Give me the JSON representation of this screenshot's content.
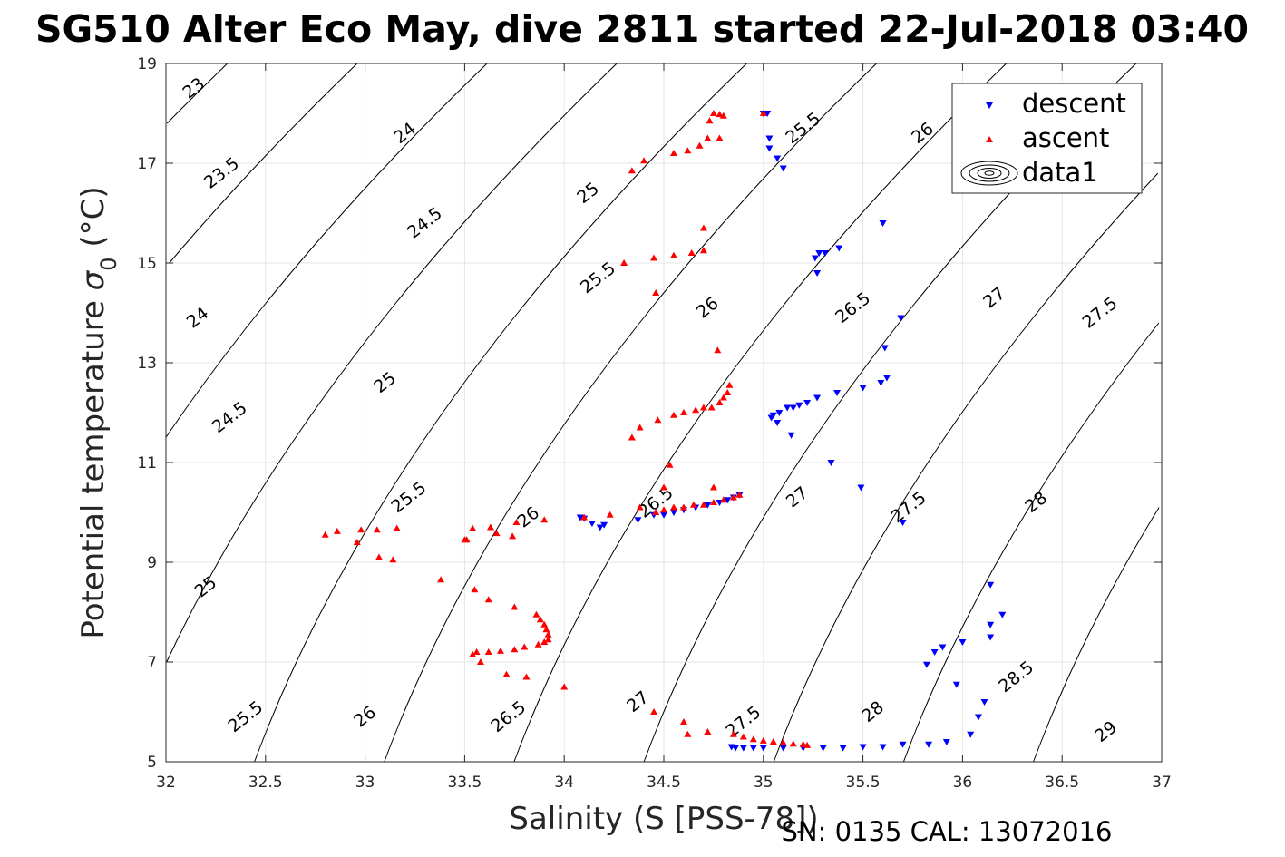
{
  "chart_data": {
    "type": "scatter",
    "title": "SG510 Alter Eco May, dive 2811 started 22-Jul-2018 03:40",
    "xlabel": "Salinity (S [PSS-78])",
    "ylabel": "Potential temperature σ_0 (°C)",
    "xlim": [
      32,
      37
    ],
    "ylim": [
      5,
      19
    ],
    "xticks": [
      "32",
      "32.5",
      "33",
      "33.5",
      "34",
      "34.5",
      "35",
      "35.5",
      "36",
      "36.5",
      "37"
    ],
    "yticks": [
      "5",
      "7",
      "9",
      "11",
      "13",
      "15",
      "17",
      "19"
    ],
    "grid": true,
    "legend_placement": "top-right",
    "legend": [
      "descent",
      "ascent",
      "data1"
    ],
    "colors": {
      "descent": "#0000ff",
      "ascent": "#ff0000",
      "contour": "#000000"
    },
    "footer": "SN: 0135  CAL: 13072016",
    "contour_levels": [
      23,
      23.5,
      24,
      24.5,
      25,
      25.5,
      26,
      26.5,
      27,
      27.5,
      28,
      28.5,
      29
    ],
    "contour_labels": [
      {
        "text": "23",
        "s": 32.14,
        "t": 18.5
      },
      {
        "text": "23.5",
        "s": 32.28,
        "t": 16.8
      },
      {
        "text": "24",
        "s": 32.16,
        "t": 13.9
      },
      {
        "text": "24",
        "s": 33.2,
        "t": 17.6
      },
      {
        "text": "24.5",
        "s": 32.32,
        "t": 11.9
      },
      {
        "text": "24.5",
        "s": 33.3,
        "t": 15.8
      },
      {
        "text": "25",
        "s": 32.2,
        "t": 8.5
      },
      {
        "text": "25",
        "s": 33.1,
        "t": 12.6
      },
      {
        "text": "25",
        "s": 34.12,
        "t": 16.4
      },
      {
        "text": "25.5",
        "s": 32.4,
        "t": 5.9
      },
      {
        "text": "25.5",
        "s": 33.22,
        "t": 10.3
      },
      {
        "text": "25.5",
        "s": 34.17,
        "t": 14.7
      },
      {
        "text": "25.5",
        "s": 35.2,
        "t": 17.7
      },
      {
        "text": "26",
        "s": 33.0,
        "t": 5.9
      },
      {
        "text": "26",
        "s": 33.82,
        "t": 9.9
      },
      {
        "text": "26",
        "s": 34.72,
        "t": 14.1
      },
      {
        "text": "26",
        "s": 35.8,
        "t": 17.6
      },
      {
        "text": "26.5",
        "s": 33.72,
        "t": 5.9
      },
      {
        "text": "26.5",
        "s": 34.46,
        "t": 10.2
      },
      {
        "text": "26.5",
        "s": 35.45,
        "t": 14.1
      },
      {
        "text": "27",
        "s": 34.37,
        "t": 6.2
      },
      {
        "text": "27",
        "s": 35.17,
        "t": 10.3
      },
      {
        "text": "27",
        "s": 36.16,
        "t": 14.3
      },
      {
        "text": "27.5",
        "s": 34.9,
        "t": 5.8
      },
      {
        "text": "27.5",
        "s": 35.73,
        "t": 10.1
      },
      {
        "text": "27.5",
        "s": 36.69,
        "t": 14.0
      },
      {
        "text": "28",
        "s": 35.55,
        "t": 6.0
      },
      {
        "text": "28",
        "s": 36.37,
        "t": 10.2
      },
      {
        "text": "28.5",
        "s": 36.27,
        "t": 6.7
      },
      {
        "text": "29",
        "s": 36.72,
        "t": 5.6
      }
    ],
    "series": [
      {
        "name": "descent",
        "marker": "triangle-down",
        "color": "#0000ff",
        "points": [
          [
            35.0,
            18.0
          ],
          [
            35.02,
            18.0
          ],
          [
            35.03,
            17.5
          ],
          [
            35.03,
            17.3
          ],
          [
            35.07,
            17.1
          ],
          [
            35.1,
            16.9
          ],
          [
            35.6,
            15.8
          ],
          [
            35.26,
            15.1
          ],
          [
            35.28,
            15.2
          ],
          [
            35.31,
            15.2
          ],
          [
            35.38,
            15.3
          ],
          [
            35.27,
            14.8
          ],
          [
            35.69,
            13.9
          ],
          [
            35.61,
            13.3
          ],
          [
            35.59,
            12.6
          ],
          [
            35.62,
            12.7
          ],
          [
            35.5,
            12.5
          ],
          [
            35.37,
            12.4
          ],
          [
            35.27,
            12.3
          ],
          [
            35.22,
            12.2
          ],
          [
            35.18,
            12.15
          ],
          [
            35.15,
            12.1
          ],
          [
            35.12,
            12.1
          ],
          [
            35.08,
            12.0
          ],
          [
            35.05,
            11.95
          ],
          [
            35.04,
            11.9
          ],
          [
            35.07,
            11.8
          ],
          [
            35.14,
            11.55
          ],
          [
            35.34,
            11.0
          ],
          [
            35.49,
            10.5
          ],
          [
            34.88,
            10.35
          ],
          [
            34.85,
            10.3
          ],
          [
            34.82,
            10.25
          ],
          [
            34.78,
            10.2
          ],
          [
            34.72,
            10.15
          ],
          [
            34.66,
            10.1
          ],
          [
            34.6,
            10.05
          ],
          [
            34.55,
            10.0
          ],
          [
            34.5,
            9.95
          ],
          [
            34.45,
            9.95
          ],
          [
            34.37,
            9.85
          ],
          [
            34.2,
            9.75
          ],
          [
            34.18,
            9.7
          ],
          [
            34.14,
            9.78
          ],
          [
            34.1,
            9.88
          ],
          [
            34.08,
            9.9
          ],
          [
            35.7,
            9.8
          ],
          [
            36.14,
            8.55
          ],
          [
            36.2,
            7.95
          ],
          [
            36.14,
            7.75
          ],
          [
            36.14,
            7.5
          ],
          [
            36.0,
            7.4
          ],
          [
            35.9,
            7.3
          ],
          [
            35.86,
            7.2
          ],
          [
            35.82,
            6.95
          ],
          [
            35.97,
            6.55
          ],
          [
            36.11,
            6.2
          ],
          [
            36.08,
            5.9
          ],
          [
            36.04,
            5.55
          ],
          [
            35.92,
            5.4
          ],
          [
            35.83,
            5.35
          ],
          [
            35.7,
            5.35
          ],
          [
            35.6,
            5.3
          ],
          [
            35.5,
            5.3
          ],
          [
            35.4,
            5.28
          ],
          [
            35.3,
            5.28
          ],
          [
            35.2,
            5.28
          ],
          [
            35.1,
            5.28
          ],
          [
            35.0,
            5.28
          ],
          [
            34.95,
            5.28
          ],
          [
            34.9,
            5.28
          ],
          [
            34.86,
            5.28
          ],
          [
            34.84,
            5.3
          ]
        ]
      },
      {
        "name": "ascent",
        "marker": "triangle-up",
        "color": "#ff0000",
        "points": [
          [
            35.0,
            18.0
          ],
          [
            34.75,
            18.0
          ],
          [
            34.78,
            17.98
          ],
          [
            34.8,
            17.95
          ],
          [
            34.73,
            17.85
          ],
          [
            34.72,
            17.5
          ],
          [
            34.78,
            17.5
          ],
          [
            34.68,
            17.35
          ],
          [
            34.62,
            17.25
          ],
          [
            34.55,
            17.2
          ],
          [
            34.4,
            17.05
          ],
          [
            34.34,
            16.85
          ],
          [
            34.7,
            15.7
          ],
          [
            34.7,
            15.25
          ],
          [
            34.64,
            15.2
          ],
          [
            34.55,
            15.15
          ],
          [
            34.45,
            15.1
          ],
          [
            34.3,
            15.0
          ],
          [
            34.46,
            14.4
          ],
          [
            34.77,
            13.25
          ],
          [
            34.83,
            12.55
          ],
          [
            34.82,
            12.4
          ],
          [
            34.8,
            12.3
          ],
          [
            34.78,
            12.2
          ],
          [
            34.74,
            12.1
          ],
          [
            34.7,
            12.1
          ],
          [
            34.66,
            12.05
          ],
          [
            34.6,
            12.0
          ],
          [
            34.55,
            11.95
          ],
          [
            34.47,
            11.85
          ],
          [
            34.38,
            11.7
          ],
          [
            34.34,
            11.5
          ],
          [
            34.53,
            10.95
          ],
          [
            34.5,
            10.5
          ],
          [
            34.75,
            10.5
          ],
          [
            34.88,
            10.35
          ],
          [
            34.85,
            10.3
          ],
          [
            34.8,
            10.25
          ],
          [
            34.75,
            10.2
          ],
          [
            34.7,
            10.15
          ],
          [
            34.65,
            10.15
          ],
          [
            34.6,
            10.1
          ],
          [
            34.55,
            10.1
          ],
          [
            34.5,
            10.05
          ],
          [
            34.46,
            10.0
          ],
          [
            34.38,
            10.1
          ],
          [
            34.23,
            9.95
          ],
          [
            34.1,
            9.9
          ],
          [
            33.9,
            9.85
          ],
          [
            33.76,
            9.8
          ],
          [
            33.63,
            9.7
          ],
          [
            33.54,
            9.68
          ],
          [
            33.51,
            9.45
          ],
          [
            33.5,
            9.45
          ],
          [
            33.66,
            9.58
          ],
          [
            33.74,
            9.52
          ],
          [
            33.16,
            9.68
          ],
          [
            33.06,
            9.65
          ],
          [
            32.98,
            9.65
          ],
          [
            32.86,
            9.62
          ],
          [
            32.8,
            9.55
          ],
          [
            32.96,
            9.4
          ],
          [
            33.07,
            9.1
          ],
          [
            33.14,
            9.05
          ],
          [
            33.38,
            8.65
          ],
          [
            33.55,
            8.45
          ],
          [
            33.62,
            8.25
          ],
          [
            33.75,
            8.1
          ],
          [
            33.86,
            7.95
          ],
          [
            33.88,
            7.85
          ],
          [
            33.9,
            7.75
          ],
          [
            33.91,
            7.65
          ],
          [
            33.92,
            7.55
          ],
          [
            33.92,
            7.45
          ],
          [
            33.9,
            7.4
          ],
          [
            33.87,
            7.35
          ],
          [
            33.8,
            7.3
          ],
          [
            33.75,
            7.25
          ],
          [
            33.68,
            7.22
          ],
          [
            33.62,
            7.2
          ],
          [
            33.56,
            7.2
          ],
          [
            33.54,
            7.15
          ],
          [
            33.58,
            7.0
          ],
          [
            33.71,
            6.75
          ],
          [
            33.81,
            6.7
          ],
          [
            34.0,
            6.5
          ],
          [
            34.45,
            6.0
          ],
          [
            34.6,
            5.8
          ],
          [
            34.62,
            5.55
          ],
          [
            34.72,
            5.6
          ],
          [
            34.85,
            5.55
          ],
          [
            34.9,
            5.5
          ],
          [
            34.95,
            5.45
          ],
          [
            35.0,
            5.42
          ],
          [
            35.05,
            5.4
          ],
          [
            35.1,
            5.38
          ],
          [
            35.15,
            5.36
          ],
          [
            35.2,
            5.35
          ],
          [
            35.22,
            5.33
          ]
        ]
      }
    ]
  }
}
